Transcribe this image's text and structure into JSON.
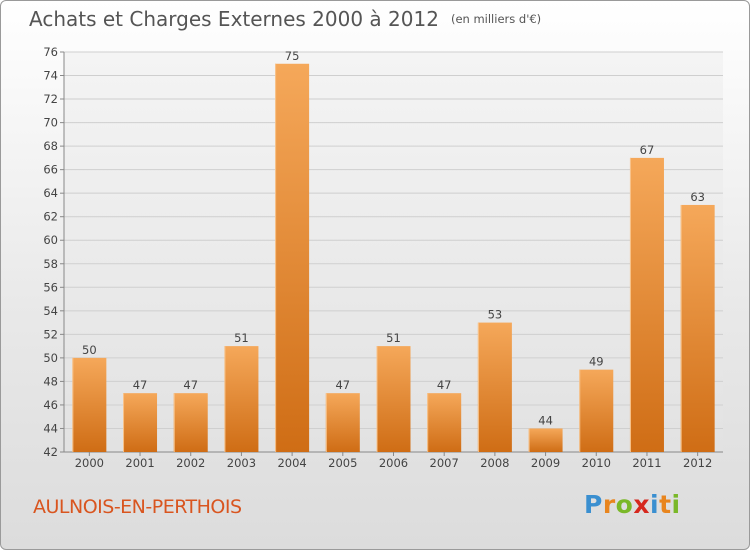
{
  "header": {
    "title": "Achats et Charges Externes 2000 à 2012",
    "subtitle": "(en milliers d'€)"
  },
  "footer": {
    "commune": "AULNOIS-EN-PERTHOIS",
    "logo_letters": [
      "P",
      "r",
      "o",
      "x",
      "i",
      "t",
      "i"
    ],
    "logo_colors": [
      "#3a8fd0",
      "#e8851e",
      "#7ab828",
      "#d6281e",
      "#3a8fd0",
      "#e8851e",
      "#7ab828"
    ]
  },
  "chart_data": {
    "type": "bar",
    "title": "Achats et Charges Externes 2000 à 2012",
    "subtitle": "(en milliers d'€)",
    "categories": [
      "2000",
      "2001",
      "2002",
      "2003",
      "2004",
      "2005",
      "2006",
      "2007",
      "2008",
      "2009",
      "2010",
      "2011",
      "2012"
    ],
    "values": [
      50,
      47,
      47,
      51,
      75,
      47,
      51,
      47,
      53,
      44,
      49,
      67,
      63
    ],
    "ylim": [
      42,
      76
    ],
    "yticks": [
      42,
      44,
      46,
      48,
      50,
      52,
      54,
      56,
      58,
      60,
      62,
      64,
      66,
      68,
      70,
      72,
      74,
      76
    ],
    "grid": true,
    "bar_color": "#e8892e"
  }
}
